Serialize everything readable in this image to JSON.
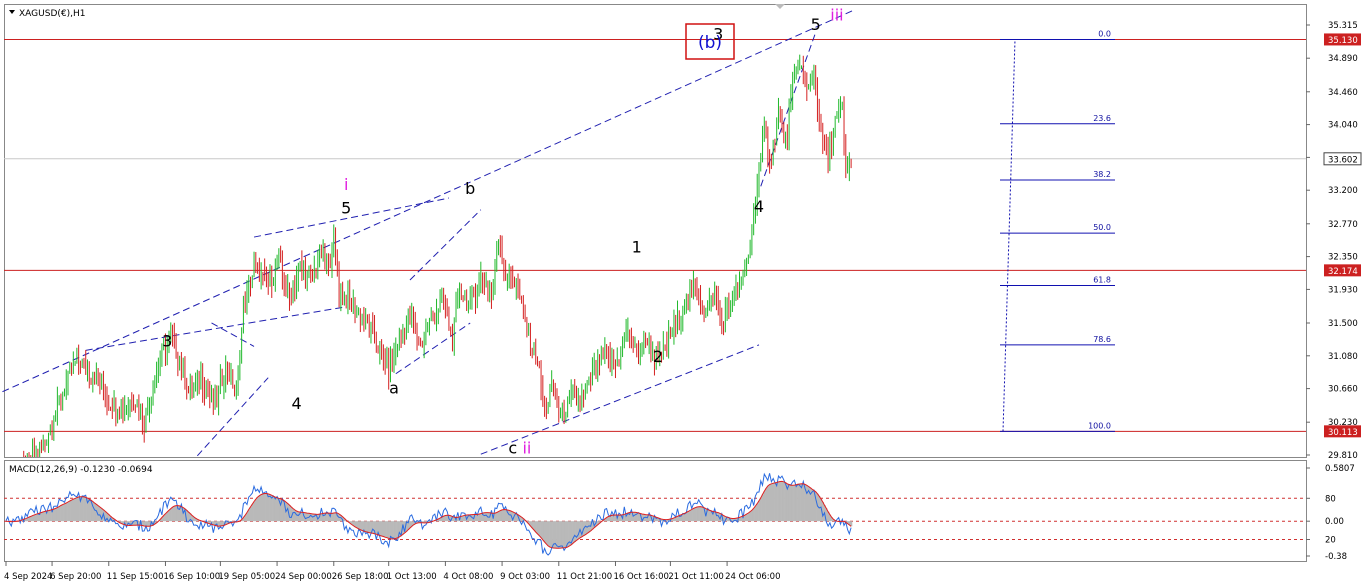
{
  "header": {
    "symbol_label": "XAGUSD(€),H1"
  },
  "macd": {
    "label": "MACD(12,26,9) -0.1230 -0.0694"
  },
  "chart_data": {
    "type": "candlestick",
    "price_axis": {
      "ticks": [
        "35.315",
        "34.890",
        "34.460",
        "34.040",
        "33.620",
        "33.200",
        "32.770",
        "32.350",
        "31.930",
        "31.500",
        "31.080",
        "30.660",
        "30.230",
        "29.810"
      ],
      "tick_values": [
        35.315,
        34.89,
        34.46,
        34.04,
        33.62,
        33.2,
        32.77,
        32.35,
        31.93,
        31.5,
        31.08,
        30.66,
        30.23,
        29.81
      ],
      "range": [
        29.72,
        35.53
      ]
    },
    "macd_axis": {
      "ticks": [
        "0.5807",
        "80",
        "0.00",
        "20",
        "-0.38"
      ],
      "tick_values": [
        0.5807,
        0.25,
        0.0,
        -0.2,
        -0.38
      ]
    },
    "x_axis": {
      "labels": [
        "4 Sep 2024",
        "6 Sep 20:00",
        "11 Sep 15:00",
        "16 Sep 10:00",
        "19 Sep 05:00",
        "24 Sep 00:00",
        "26 Sep 18:00",
        "1 Oct 13:00",
        "4 Oct 08:00",
        "9 Oct 03:00",
        "11 Oct 21:00",
        "16 Oct 16:00",
        "21 Oct 11:00",
        "24 Oct 06:00"
      ],
      "bar_index": [
        0,
        26,
        58,
        90,
        121,
        153,
        185,
        216,
        248,
        280,
        312,
        344,
        375,
        407
      ]
    },
    "price_levels": [
      {
        "label": "35.130",
        "value": 35.13
      },
      {
        "label": "32.174",
        "value": 32.174
      },
      {
        "label": "30.113",
        "value": 30.113
      }
    ],
    "current_price": {
      "label": "33.602",
      "value": 33.602
    },
    "fibonacci": [
      {
        "label": "0.0",
        "value": 35.13
      },
      {
        "label": "23.6",
        "value": 34.05
      },
      {
        "label": "38.2",
        "value": 33.33
      },
      {
        "label": "50.0",
        "value": 32.65
      },
      {
        "label": "61.8",
        "value": 31.98
      },
      {
        "label": "78.6",
        "value": 31.22
      },
      {
        "label": "100.0",
        "value": 30.113
      }
    ],
    "waves": [
      {
        "text": "3",
        "bar": 91,
        "price": 31.2,
        "color": "#000000"
      },
      {
        "text": "4",
        "bar": 164,
        "price": 30.4,
        "color": "#000000"
      },
      {
        "text": "5",
        "bar": 192,
        "price": 32.9,
        "color": "#000000"
      },
      {
        "text": "i",
        "bar": 192,
        "price": 33.2,
        "color": "#e020e0"
      },
      {
        "text": "a",
        "bar": 219,
        "price": 30.6,
        "color": "#000000"
      },
      {
        "text": "b",
        "bar": 262,
        "price": 33.15,
        "color": "#000000"
      },
      {
        "text": "c",
        "bar": 286,
        "price": 29.83,
        "color": "#000000"
      },
      {
        "text": "ii",
        "bar": 294,
        "price": 29.83,
        "color": "#e020e0"
      },
      {
        "text": "1",
        "bar": 356,
        "price": 32.4,
        "color": "#000000"
      },
      {
        "text": "2",
        "bar": 368,
        "price": 31.0,
        "color": "#000000"
      },
      {
        "text": "3",
        "bar": 402,
        "price": 35.13,
        "color": "#000000"
      },
      {
        "text": "4",
        "bar": 425,
        "price": 32.92,
        "color": "#000000"
      },
      {
        "text": "5",
        "bar": 457,
        "price": 35.25,
        "color": "#000000"
      },
      {
        "text": "iii",
        "bar": 469,
        "price": 35.37,
        "color": "#e020e0"
      }
    ],
    "wave_box": {
      "text": "(b)",
      "color": "#1010d0",
      "border": "#d01010"
    },
    "colors": {
      "bull": "#1fb82a",
      "bear": "#d42020",
      "level_line": "#cc2020",
      "channel": "#2020b0",
      "fib": "#1010b0",
      "macd_line": "#2a6be0",
      "signal_line": "#dd2020",
      "histogram": "#b9b9b9"
    }
  }
}
